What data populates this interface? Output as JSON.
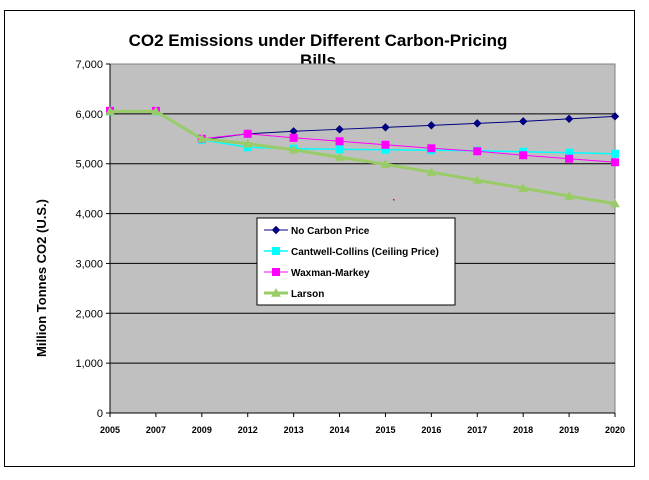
{
  "chart_data": {
    "type": "line",
    "title_line1": "CO2 Emissions under Different Carbon-Pricing",
    "title_line2": "Bills",
    "xlabel": "",
    "ylabel": "Million Tonnes CO2 (U.S.)",
    "categories": [
      "2005",
      "2007",
      "2009",
      "2012",
      "2013",
      "2014",
      "2015",
      "2016",
      "2017",
      "2018",
      "2019",
      "2020"
    ],
    "ylim": [
      0,
      7000
    ],
    "yticks": [
      "0",
      "1,000",
      "2,000",
      "3,000",
      "4,000",
      "5,000",
      "6,000",
      "7,000"
    ],
    "ytick_values": [
      0,
      1000,
      2000,
      3000,
      4000,
      5000,
      6000,
      7000
    ],
    "grid": "horizontal",
    "plot_background": "#c0c0c0",
    "legend_position": "center",
    "series": [
      {
        "name": "No Carbon Price",
        "color": "#000080",
        "marker": "diamond",
        "values": [
          6050,
          6050,
          5480,
          5600,
          5650,
          5690,
          5730,
          5770,
          5810,
          5850,
          5900,
          5950
        ]
      },
      {
        "name": "Cantwell-Collins (Ceiling Price)",
        "color": "#00ffff",
        "marker": "square",
        "values": [
          6050,
          6050,
          5480,
          5330,
          5300,
          5290,
          5280,
          5270,
          5260,
          5240,
          5220,
          5200
        ]
      },
      {
        "name": "Waxman-Markey",
        "color": "#ff00ff",
        "marker": "square",
        "values": [
          6060,
          6060,
          5500,
          5600,
          5520,
          5450,
          5380,
          5310,
          5250,
          5170,
          5100,
          5030
        ]
      },
      {
        "name": "Larson",
        "color": "#99cc66",
        "marker": "triangle",
        "values": [
          6050,
          6050,
          5500,
          5400,
          5280,
          5130,
          4990,
          4830,
          4670,
          4510,
          4350,
          4200
        ]
      }
    ]
  }
}
